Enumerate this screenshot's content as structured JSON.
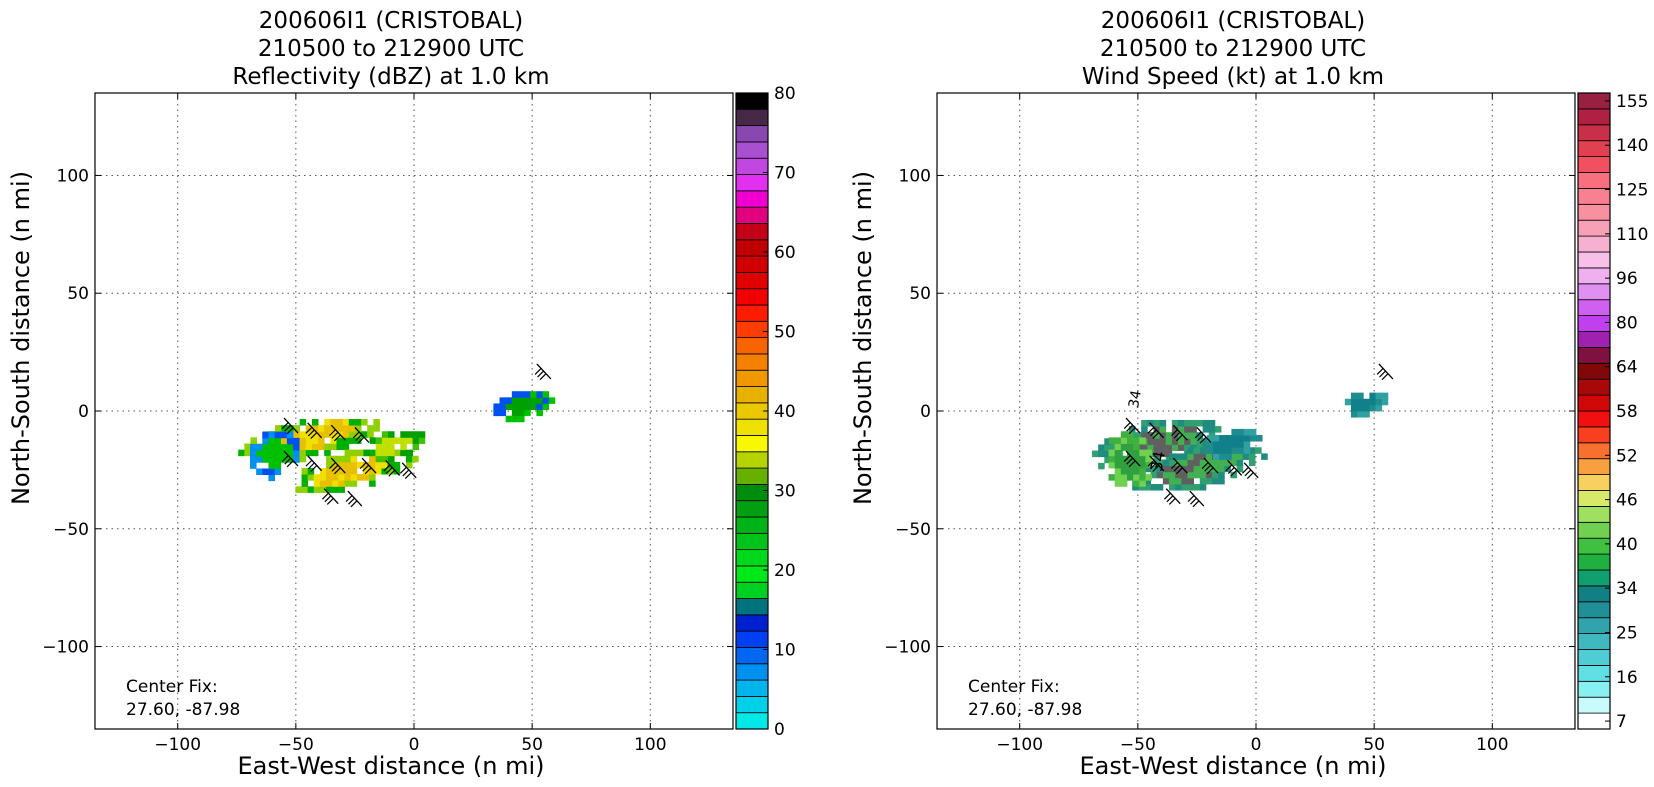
{
  "chart_data": [
    {
      "type": "heatmap",
      "title": [
        "200606I1 (CRISTOBAL)",
        "210500 to 212900 UTC",
        "Reflectivity (dBZ) at 1.0 km"
      ],
      "xlabel": "East-West distance (n mi)",
      "ylabel": "North-South distance (n mi)",
      "xlim": [
        -135,
        135
      ],
      "ylim": [
        -135,
        135
      ],
      "xticks": [
        -100,
        -50,
        0,
        50,
        100
      ],
      "yticks": [
        -100,
        -50,
        0,
        50,
        100
      ],
      "xtick_labels": [
        "−100",
        "−50",
        "0",
        "50",
        "100"
      ],
      "ytick_labels": [
        "−100",
        "−50",
        "0",
        "50",
        "100"
      ],
      "grid": true,
      "annotation": [
        "Center Fix:",
        "27.60, -87.98"
      ],
      "colorbar": {
        "min": 0,
        "max": 80,
        "tick_values": [
          0,
          10,
          20,
          30,
          40,
          50,
          60,
          70,
          80
        ],
        "tick_labels": [
          "0",
          "10",
          "20",
          "30",
          "40",
          "50",
          "60",
          "70",
          "80"
        ],
        "colors": [
          "#00e8e8",
          "#00d0e8",
          "#00b4ec",
          "#0090f0",
          "#0068f0",
          "#0040f0",
          "#0020d0",
          "#00747e",
          "#00d020",
          "#00e818",
          "#00d81c",
          "#00c418",
          "#00b418",
          "#00a010",
          "#008c0c",
          "#68b000",
          "#b4d400",
          "#f8f800",
          "#f0e000",
          "#ecc800",
          "#e8b000",
          "#f09800",
          "#f48000",
          "#f86400",
          "#fc3c00",
          "#fc1c00",
          "#f00000",
          "#e00000",
          "#d00000",
          "#c00000",
          "#c40018",
          "#e00080",
          "#f000d0",
          "#e030f0",
          "#c048e0",
          "#a850d0",
          "#8848b0",
          "#482848",
          "#000000"
        ]
      },
      "echo_regions": [
        {
          "x": -45,
          "y": -10,
          "rx": 32,
          "ry": 9,
          "level": "high"
        },
        {
          "x": -28,
          "y": -24,
          "rx": 30,
          "ry": 8,
          "level": "high"
        },
        {
          "x": -10,
          "y": -13,
          "rx": 14,
          "ry": 6,
          "level": "medium"
        },
        {
          "x": -60,
          "y": -17,
          "rx": 12,
          "ry": 10,
          "level": "low"
        },
        {
          "x": 45,
          "y": 4,
          "rx": 14,
          "ry": 6,
          "level": "scattered"
        }
      ],
      "wind_barbs": [
        {
          "x": -55,
          "y": -3
        },
        {
          "x": -45,
          "y": -5
        },
        {
          "x": -35,
          "y": -6
        },
        {
          "x": -25,
          "y": -7
        },
        {
          "x": -55,
          "y": -17
        },
        {
          "x": -45,
          "y": -19
        },
        {
          "x": -35,
          "y": -20
        },
        {
          "x": -22,
          "y": -20
        },
        {
          "x": -12,
          "y": -21
        },
        {
          "x": -5,
          "y": -22
        },
        {
          "x": -38,
          "y": -33
        },
        {
          "x": -28,
          "y": -34
        },
        {
          "x": 52,
          "y": 20
        }
      ]
    },
    {
      "type": "heatmap",
      "title": [
        "200606I1 (CRISTOBAL)",
        "210500 to 212900 UTC",
        "Wind Speed (kt) at 1.0 km"
      ],
      "xlabel": "East-West distance (n mi)",
      "ylabel": "North-South distance (n mi)",
      "xlim": [
        -135,
        135
      ],
      "ylim": [
        -135,
        135
      ],
      "xticks": [
        -100,
        -50,
        0,
        50,
        100
      ],
      "yticks": [
        -100,
        -50,
        0,
        50,
        100
      ],
      "xtick_labels": [
        "−100",
        "−50",
        "0",
        "50",
        "100"
      ],
      "ytick_labels": [
        "−100",
        "−50",
        "0",
        "50",
        "100"
      ],
      "grid": true,
      "annotation": [
        "Center Fix:",
        "27.60, -87.98"
      ],
      "contour_labels": [
        "34",
        "34"
      ],
      "colorbar": {
        "tick_labels": [
          "7",
          "16",
          "25",
          "34",
          "40",
          "46",
          "52",
          "58",
          "64",
          "80",
          "96",
          "110",
          "125",
          "140",
          "155"
        ],
        "colors": [
          "#ffffff",
          "#c8fcfc",
          "#88f0f0",
          "#60e0e4",
          "#50ccd4",
          "#40b8c0",
          "#30a4ac",
          "#209098",
          "#108084",
          "#10a070",
          "#20b040",
          "#40c040",
          "#70d050",
          "#a0e060",
          "#d8e868",
          "#f8d060",
          "#f8a040",
          "#f87030",
          "#f84020",
          "#f01010",
          "#d00808",
          "#a80808",
          "#800808",
          "#801040",
          "#a020b0",
          "#c040f0",
          "#d060f0",
          "#e090f0",
          "#f0b0f0",
          "#f8c0e8",
          "#f8b0d0",
          "#f8a0b8",
          "#f890a0",
          "#f88090",
          "#f87080",
          "#f05060",
          "#e04050",
          "#c83048",
          "#b02040",
          "#982040"
        ]
      },
      "echo_regions": [
        {
          "x": -42,
          "y": -12,
          "rx": 30,
          "ry": 10,
          "level": "mid"
        },
        {
          "x": -25,
          "y": -22,
          "rx": 30,
          "ry": 9,
          "level": "mid"
        },
        {
          "x": -55,
          "y": -20,
          "rx": 10,
          "ry": 12,
          "level": "green"
        },
        {
          "x": -12,
          "y": -12,
          "rx": 14,
          "ry": 6,
          "level": "teal"
        },
        {
          "x": 45,
          "y": 5,
          "rx": 10,
          "ry": 5,
          "level": "teal"
        }
      ],
      "wind_barbs": [
        {
          "x": -55,
          "y": -3
        },
        {
          "x": -45,
          "y": -5
        },
        {
          "x": -35,
          "y": -6
        },
        {
          "x": -25,
          "y": -7
        },
        {
          "x": -55,
          "y": -17
        },
        {
          "x": -45,
          "y": -19
        },
        {
          "x": -35,
          "y": -20
        },
        {
          "x": -22,
          "y": -20
        },
        {
          "x": -12,
          "y": -21
        },
        {
          "x": -5,
          "y": -22
        },
        {
          "x": -38,
          "y": -33
        },
        {
          "x": -28,
          "y": -34
        },
        {
          "x": 52,
          "y": 20
        }
      ]
    }
  ]
}
